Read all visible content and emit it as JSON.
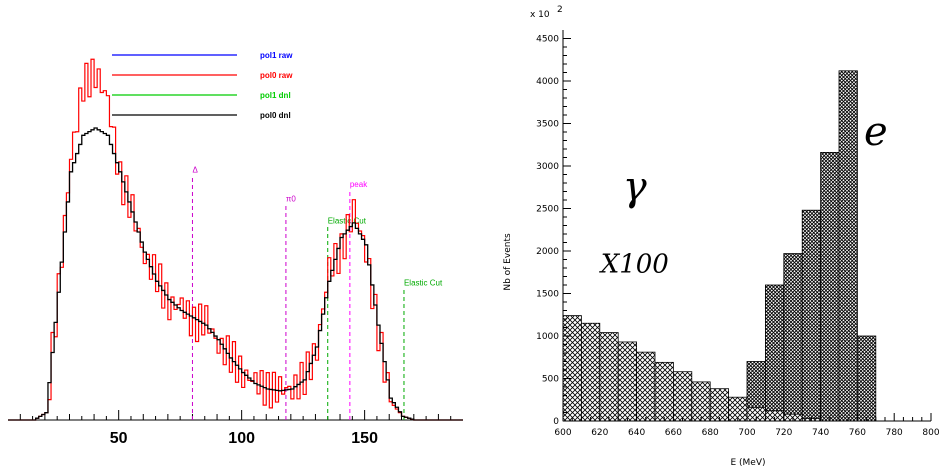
{
  "chart_data": [
    {
      "type": "line",
      "title": "",
      "xlabel": "",
      "ylabel": "",
      "xlim": [
        5,
        190
      ],
      "x_ticks": [
        "50",
        "100",
        "150"
      ],
      "x_tick_values": [
        50,
        100,
        150
      ],
      "legend": {
        "placement": "top",
        "entries": [
          {
            "name": "pol1 raw",
            "color": "#0000ff"
          },
          {
            "name": "pol0 raw",
            "color": "#ff0000"
          },
          {
            "name": "pol1 dnl",
            "color": "#00cc00"
          },
          {
            "name": "pol0 dnl",
            "color": "#000000"
          }
        ]
      },
      "annotations": [
        {
          "text": "Δ",
          "x": 80,
          "color": "#cc00cc",
          "height": 0.67
        },
        {
          "text": "π0",
          "x": 118,
          "color": "#cc00cc",
          "height": 0.59
        },
        {
          "text": "Elastic Cut",
          "x": 135,
          "color": "#00aa00",
          "height": 0.53
        },
        {
          "text": "peak",
          "x": 144,
          "color": "#ff00ff",
          "height": 0.63
        },
        {
          "text": "Elastic Cut",
          "x": 166,
          "color": "#00aa00",
          "height": 0.36
        }
      ],
      "series": [
        {
          "name": "pol0 dnl",
          "color": "#000000",
          "x": [
            5,
            10,
            15,
            20,
            25,
            30,
            35,
            40,
            45,
            50,
            55,
            60,
            65,
            70,
            75,
            80,
            85,
            90,
            95,
            100,
            105,
            110,
            115,
            120,
            125,
            130,
            135,
            140,
            145,
            150,
            155,
            160,
            165,
            170,
            175,
            180,
            185,
            190
          ],
          "values": [
            0,
            0,
            0,
            0.02,
            0.35,
            0.68,
            0.78,
            0.8,
            0.78,
            0.68,
            0.57,
            0.46,
            0.38,
            0.33,
            0.3,
            0.28,
            0.26,
            0.22,
            0.17,
            0.13,
            0.1,
            0.085,
            0.08,
            0.085,
            0.11,
            0.2,
            0.38,
            0.5,
            0.54,
            0.48,
            0.26,
            0.06,
            0.01,
            0,
            0,
            0,
            0,
            0
          ]
        },
        {
          "name": "pol0 raw",
          "color": "#ff0000",
          "x": [
            5,
            10,
            15,
            20,
            25,
            30,
            35,
            40,
            45,
            50,
            55,
            60,
            65,
            70,
            75,
            80,
            85,
            90,
            95,
            100,
            105,
            110,
            115,
            120,
            125,
            130,
            135,
            140,
            145,
            150,
            155,
            160,
            165,
            170,
            175,
            180,
            185,
            190
          ],
          "values": [
            0,
            0,
            0,
            0.02,
            0.36,
            0.72,
            0.92,
            0.95,
            0.88,
            0.66,
            0.58,
            0.44,
            0.4,
            0.31,
            0.32,
            0.26,
            0.28,
            0.2,
            0.18,
            0.12,
            0.11,
            0.08,
            0.09,
            0.08,
            0.12,
            0.19,
            0.42,
            0.46,
            0.58,
            0.46,
            0.24,
            0.05,
            0.01,
            0,
            0,
            0,
            0,
            0
          ]
        }
      ]
    },
    {
      "type": "bar",
      "title": "",
      "xlabel": "E (MeV)",
      "ylabel": "Nb of Events",
      "y_scale_label": "x 10",
      "y_scale_exp": "2",
      "xlim": [
        600,
        800
      ],
      "ylim": [
        0,
        4600
      ],
      "x_ticks": [
        "600",
        "620",
        "640",
        "660",
        "680",
        "700",
        "720",
        "740",
        "760",
        "780",
        "800"
      ],
      "y_ticks": [
        "0",
        "500",
        "1000",
        "1500",
        "2000",
        "2500",
        "3000",
        "3500",
        "4000",
        "4500"
      ],
      "grid": false,
      "fill": "cross-hatch",
      "annotations": [
        {
          "text": "e",
          "x": 770,
          "y": 3250
        },
        {
          "text": "γ",
          "x": 639,
          "y": 2600
        },
        {
          "text": "X100",
          "x": 639,
          "y": 1750
        }
      ],
      "series": [
        {
          "name": "",
          "bin_edges": [
            600,
            610,
            620,
            630,
            640,
            650,
            660,
            670,
            680,
            690,
            700,
            710,
            720,
            730,
            740,
            750,
            760,
            770
          ],
          "values": [
            1240,
            1150,
            1040,
            930,
            810,
            690,
            580,
            460,
            380,
            280,
            0,
            0,
            0,
            0,
            0,
            0,
            0
          ]
        },
        {
          "name": "",
          "bin_edges": [
            600,
            610,
            620,
            630,
            640,
            650,
            660,
            670,
            680,
            690,
            700,
            710,
            720,
            730,
            740,
            750,
            760,
            770
          ],
          "values": [
            0,
            0,
            0,
            0,
            0,
            0,
            0,
            0,
            0,
            0,
            700,
            1600,
            1970,
            2480,
            3160,
            4120,
            1000
          ]
        },
        {
          "name": "",
          "bin_edges": [
            700,
            710,
            720,
            730,
            740
          ],
          "values": [
            160,
            120,
            80,
            30
          ]
        }
      ]
    }
  ]
}
